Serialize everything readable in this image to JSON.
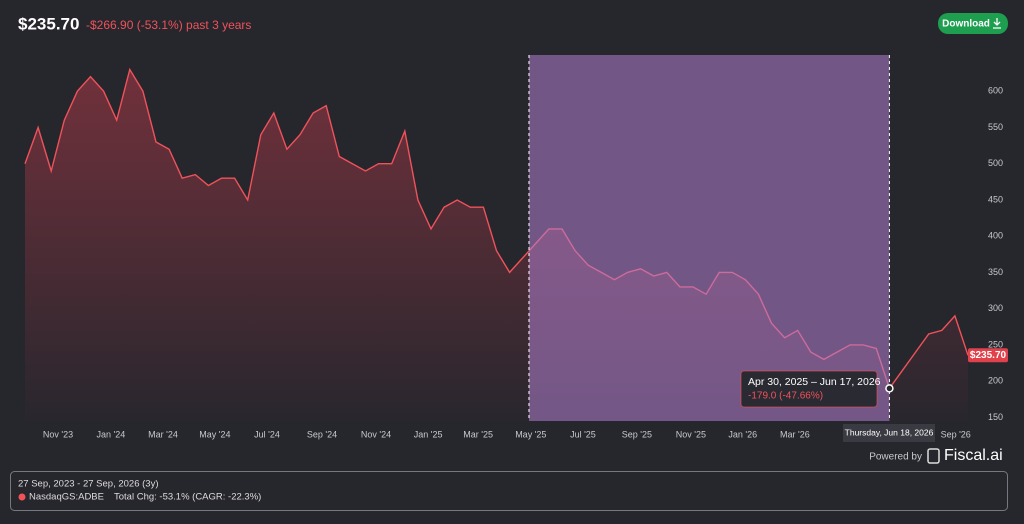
{
  "header": {
    "price": "$235.70",
    "change": "-$266.90 (-53.1%) past 3 years",
    "download": "Download"
  },
  "chart_data": {
    "type": "line",
    "x": [
      0,
      0.5,
      1,
      1.5,
      2,
      2.5,
      3,
      3.5,
      4,
      4.5,
      5,
      5.5,
      6,
      6.5,
      7,
      7.5,
      8,
      8.5,
      9,
      9.5,
      10,
      10.5,
      11,
      11.5,
      12,
      12.5,
      13,
      13.5,
      14,
      14.5,
      15,
      15.5,
      16,
      16.5,
      17,
      17.5,
      18,
      18.5,
      19,
      19.5,
      20,
      20.5,
      21,
      21.5,
      22,
      22.5,
      23,
      23.5,
      24,
      24.5,
      25,
      25.5,
      26,
      26.5,
      27,
      27.5,
      28,
      28.5,
      29,
      29.5,
      30,
      30.5,
      31,
      31.5,
      32,
      32.5,
      33,
      33.5,
      34,
      34.5,
      35,
      35.5,
      36
    ],
    "series": [
      {
        "name": "NasdaqGS:ADBE",
        "color": "#f0525a",
        "values": [
          500,
          550,
          490,
          560,
          600,
          620,
          600,
          560,
          630,
          600,
          530,
          520,
          480,
          485,
          470,
          480,
          480,
          450,
          540,
          570,
          520,
          540,
          570,
          580,
          510,
          500,
          490,
          500,
          500,
          545,
          450,
          410,
          440,
          450,
          440,
          440,
          380,
          350,
          370,
          390,
          410,
          410,
          380,
          360,
          350,
          340,
          350,
          355,
          345,
          350,
          330,
          330,
          320,
          350,
          350,
          340,
          320,
          280,
          260,
          270,
          240,
          230,
          240,
          250,
          250,
          245,
          190,
          215,
          240,
          265,
          270,
          290,
          235.7
        ],
        "last_label": "$235.70"
      }
    ],
    "xlim": [
      0,
      36
    ],
    "ylim": [
      145,
      650
    ],
    "xticks": [
      {
        "value": 1.26,
        "label": "Nov '23"
      },
      {
        "value": 3.28,
        "label": "Jan '24"
      },
      {
        "value": 5.27,
        "label": "Mar '24"
      },
      {
        "value": 7.25,
        "label": "May '24"
      },
      {
        "value": 9.24,
        "label": "Jul '24"
      },
      {
        "value": 11.34,
        "label": "Sep '24"
      },
      {
        "value": 13.4,
        "label": "Nov '24"
      },
      {
        "value": 15.39,
        "label": "Jan '25"
      },
      {
        "value": 17.3,
        "label": "Mar '25"
      },
      {
        "value": 19.31,
        "label": "May '25"
      },
      {
        "value": 21.3,
        "label": "Jul '25"
      },
      {
        "value": 23.36,
        "label": "Sep '25"
      },
      {
        "value": 25.42,
        "label": "Nov '25"
      },
      {
        "value": 27.4,
        "label": "Jan '26"
      },
      {
        "value": 29.39,
        "label": "Mar '26"
      },
      {
        "value": 35.53,
        "label": "Sep '26"
      }
    ],
    "yticks": [
      150,
      200,
      250,
      300,
      350,
      400,
      450,
      500,
      550,
      600
    ],
    "selection": {
      "range": [
        19.24,
        33.0
      ],
      "label": "Apr 30, 2025 – Jun 17, 2026",
      "change": "-179.0 (-47.66%)",
      "hover": "Thursday, Jun 18, 2026"
    }
  },
  "branding": {
    "powered": "Powered by",
    "name": "Fiscal.ai"
  },
  "footer": {
    "range": "27 Sep, 2023 - 27 Sep, 2026 (3y)",
    "ticker": "NasdaqGS:ADBE",
    "summary": "Total Chg: -53.1% (CAGR: -22.3%)"
  }
}
